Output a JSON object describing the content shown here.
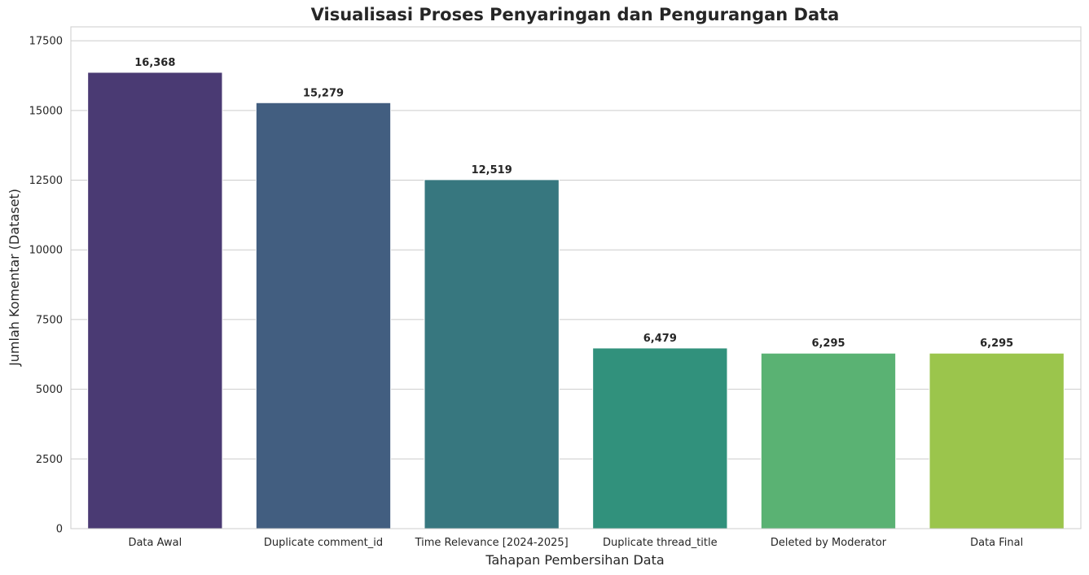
{
  "chart_data": {
    "type": "bar",
    "title": "Visualisasi Proses Penyaringan dan Pengurangan Data",
    "xlabel": "Tahapan Pembersihan Data",
    "ylabel": "Jumlah Komentar (Dataset)",
    "categories": [
      "Data Awal",
      "Duplicate comment_id",
      "Time Relevance [2024-2025]",
      "Duplicate thread_title",
      "Deleted by Moderator",
      "Data Final"
    ],
    "values": [
      16368,
      15279,
      12519,
      6479,
      6295,
      6295
    ],
    "value_labels": [
      "16,368",
      "15,279",
      "12,519",
      "6,479",
      "6,295",
      "6,295"
    ],
    "colors": [
      "#4a3a73",
      "#425e80",
      "#37777f",
      "#31917c",
      "#5ab273",
      "#9bc54c"
    ],
    "ylim": [
      0,
      18000
    ],
    "yticks": [
      0,
      2500,
      5000,
      7500,
      10000,
      12500,
      15000,
      17500
    ],
    "ytick_labels": [
      "0",
      "2500",
      "5000",
      "7500",
      "10000",
      "12500",
      "15000",
      "17500"
    ],
    "grid": true,
    "legend": "none"
  }
}
